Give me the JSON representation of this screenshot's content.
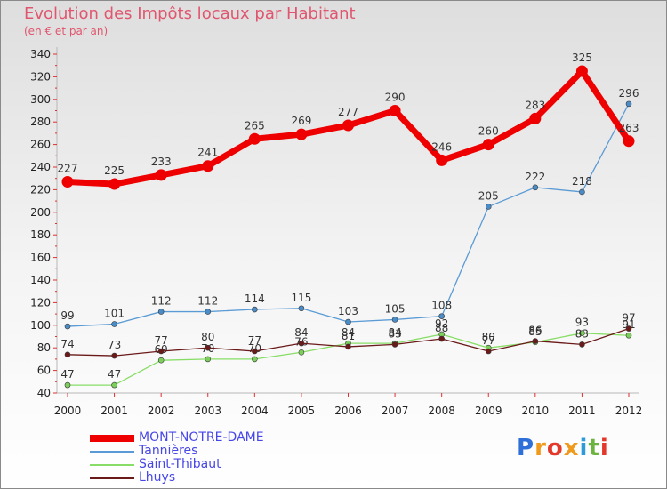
{
  "header": {
    "title": "Evolution des Impôts locaux par Habitant",
    "subtitle": "(en € et par an)"
  },
  "logo": {
    "text": "Proxiti"
  },
  "colors": {
    "MONT-NOTRE-DAME": "#ee0000",
    "Tannières": "#5b9bd5",
    "Saint-Thibaut": "#88dd66",
    "Lhuys": "#6b1a1a",
    "title": "#e0566e",
    "legend_text": "#4747e8"
  },
  "chart_data": {
    "type": "line",
    "title": "Evolution des Impôts locaux par Habitant",
    "subtitle": "(en € et par an)",
    "xlabel": "",
    "ylabel": "",
    "ylim": [
      40,
      340
    ],
    "ystep": 20,
    "grid": false,
    "legend_position": "bottom-left",
    "categories": [
      "2000",
      "2001",
      "2002",
      "2003",
      "2004",
      "2005",
      "2006",
      "2007",
      "2008",
      "2009",
      "2010",
      "2011",
      "2012"
    ],
    "series": [
      {
        "name": "MONT-NOTRE-DAME",
        "values": [
          227,
          225,
          233,
          241,
          265,
          269,
          277,
          290,
          246,
          260,
          283,
          325,
          263
        ]
      },
      {
        "name": "Tannières",
        "values": [
          99,
          101,
          112,
          112,
          114,
          115,
          103,
          105,
          108,
          205,
          222,
          218,
          296
        ]
      },
      {
        "name": "Saint-Thibaut",
        "values": [
          47,
          47,
          69,
          70,
          70,
          76,
          84,
          84,
          92,
          80,
          85,
          93,
          91
        ]
      },
      {
        "name": "Lhuys",
        "values": [
          74,
          73,
          77,
          80,
          77,
          84,
          81,
          83,
          88,
          77,
          86,
          83,
          97
        ]
      }
    ]
  }
}
